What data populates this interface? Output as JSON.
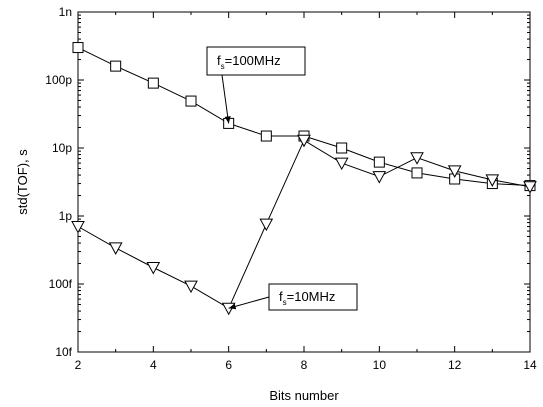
{
  "chart_data": {
    "type": "line",
    "title": "",
    "xlabel": "Bits number",
    "ylabel": "std(TOF), s",
    "y_scale": "log",
    "xlim": [
      2,
      14
    ],
    "ylim": [
      1e-14,
      1e-09
    ],
    "x_ticks": [
      2,
      4,
      6,
      8,
      10,
      12,
      14
    ],
    "x_tick_labels": [
      "2",
      "4",
      "6",
      "8",
      "10",
      "12",
      "14"
    ],
    "y_ticks": [
      1e-14,
      1e-13,
      1e-12,
      1e-11,
      1e-10,
      1e-09
    ],
    "y_tick_labels": [
      "10f",
      "100f",
      "1p",
      "10p",
      "100p",
      "1n"
    ],
    "grid": false,
    "legend": "none",
    "series": [
      {
        "marker": "square",
        "color": "#000000",
        "x": [
          2,
          3,
          4,
          5,
          6,
          7,
          8,
          9,
          10,
          11,
          12,
          13,
          14
        ],
        "y": [
          3e-10,
          1.6e-10,
          9e-11,
          4.9e-11,
          2.3e-11,
          1.5e-11,
          1.5e-11,
          1e-11,
          6.2e-12,
          4.3e-12,
          3.5e-12,
          3e-12,
          2.8e-12
        ]
      },
      {
        "marker": "triangle-down",
        "color": "#000000",
        "x": [
          2,
          3,
          4,
          5,
          6,
          7,
          8,
          9,
          10,
          11,
          12,
          13,
          14
        ],
        "y": [
          7e-13,
          3.4e-13,
          1.75e-13,
          9.3e-14,
          4.4e-14,
          7.6e-13,
          1.3e-11,
          6e-12,
          3.8e-12,
          7.2e-12,
          4.6e-12,
          3.4e-12,
          2.7e-12
        ]
      }
    ],
    "annotations": [
      {
        "base": "f",
        "sub": "s",
        "rest": "=100MHz",
        "target": {
          "x": 6,
          "y": 2.3e-11
        }
      },
      {
        "base": "f",
        "sub": "s",
        "rest": "=10MHz",
        "target": {
          "x": 6,
          "y": 4.4e-14
        }
      }
    ]
  }
}
